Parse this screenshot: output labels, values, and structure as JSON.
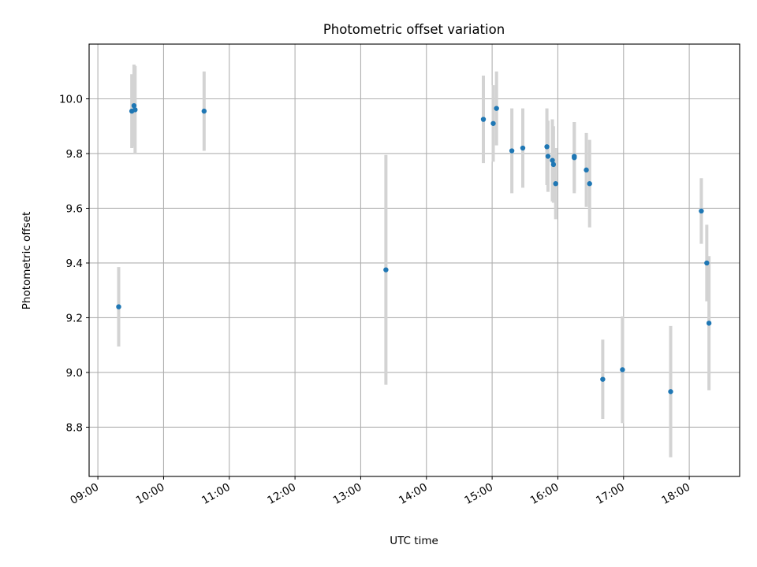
{
  "chart_data": {
    "type": "scatter",
    "title": "Photometric offset variation",
    "xlabel": "UTC time",
    "ylabel": "Photometric offset",
    "x_format": "HH:MM",
    "xlim": [
      "08:52",
      "18:46"
    ],
    "ylim": [
      8.62,
      10.2
    ],
    "x_ticks": [
      "09:00",
      "10:00",
      "11:00",
      "12:00",
      "13:00",
      "14:00",
      "15:00",
      "16:00",
      "17:00",
      "18:00"
    ],
    "y_ticks": [
      8.8,
      9.0,
      9.2,
      9.4,
      9.6,
      9.8,
      10.0
    ],
    "grid": true,
    "colors": {
      "point": "#1f77b4",
      "errorbar": "#d3d3d3"
    },
    "points": [
      {
        "x": "09:19",
        "y": 9.24,
        "err": 0.145
      },
      {
        "x": "09:31",
        "y": 9.955,
        "err": 0.135
      },
      {
        "x": "09:33",
        "y": 9.975,
        "err": 0.15
      },
      {
        "x": "09:34",
        "y": 9.96,
        "err": 0.16
      },
      {
        "x": "10:37",
        "y": 9.955,
        "err": 0.145
      },
      {
        "x": "13:23",
        "y": 9.375,
        "err": 0.42
      },
      {
        "x": "14:52",
        "y": 9.925,
        "err": 0.16
      },
      {
        "x": "15:01",
        "y": 9.91,
        "err": 0.14
      },
      {
        "x": "15:04",
        "y": 9.965,
        "err": 0.135
      },
      {
        "x": "15:18",
        "y": 9.81,
        "err": 0.155
      },
      {
        "x": "15:28",
        "y": 9.82,
        "err": 0.145
      },
      {
        "x": "15:50",
        "y": 9.825,
        "err": 0.14
      },
      {
        "x": "15:51",
        "y": 9.79,
        "err": 0.13
      },
      {
        "x": "15:55",
        "y": 9.775,
        "err": 0.15
      },
      {
        "x": "15:56",
        "y": 9.76,
        "err": 0.14
      },
      {
        "x": "15:58",
        "y": 9.69,
        "err": 0.13
      },
      {
        "x": "16:15",
        "y": 9.79,
        "err": 0.125
      },
      {
        "x": "16:15",
        "y": 9.785,
        "err": 0.13
      },
      {
        "x": "16:26",
        "y": 9.74,
        "err": 0.135
      },
      {
        "x": "16:29",
        "y": 9.69,
        "err": 0.16
      },
      {
        "x": "16:41",
        "y": 8.975,
        "err": 0.145
      },
      {
        "x": "16:59",
        "y": 9.01,
        "err": 0.195
      },
      {
        "x": "17:43",
        "y": 8.93,
        "err": 0.24
      },
      {
        "x": "18:11",
        "y": 9.59,
        "err": 0.12
      },
      {
        "x": "18:16",
        "y": 9.4,
        "err": 0.14
      },
      {
        "x": "18:18",
        "y": 9.18,
        "err": 0.245
      }
    ]
  }
}
